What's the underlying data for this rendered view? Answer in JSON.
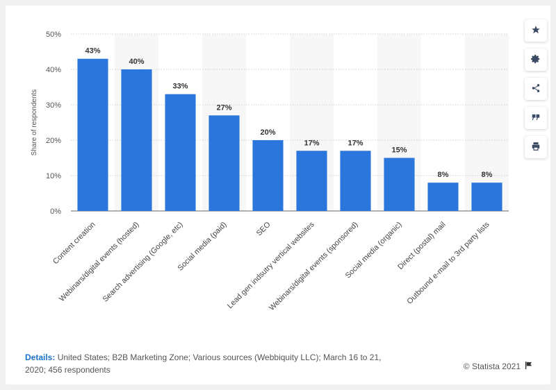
{
  "chart_data": {
    "type": "bar",
    "categories": [
      "Content creation",
      "Webinars/digital events (hosted)",
      "Search advertising (Google, etc)",
      "Social media (paid)",
      "SEO",
      "Lead gen indsutry vertical websites",
      "Webinars/digital events (sponsored)",
      "Social media (organic)",
      "Direct (postal) mail",
      "Outbound e-mail to 3rd party lists"
    ],
    "values": [
      43,
      40,
      33,
      27,
      20,
      17,
      17,
      15,
      8,
      8
    ],
    "value_labels": [
      "43%",
      "40%",
      "33%",
      "27%",
      "20%",
      "17%",
      "17%",
      "15%",
      "8%",
      "8%"
    ],
    "ylabel": "Share of respondents",
    "ylim": [
      0,
      50
    ],
    "yticks": [
      "0%",
      "10%",
      "20%",
      "30%",
      "40%",
      "50%"
    ],
    "bar_color": "#2a76dd",
    "grid": true
  },
  "details": {
    "label": "Details:",
    "text": "United States; B2B Marketing Zone; Various sources (Webbiquity LLC); March 16 to 21, 2020; 456 respondents"
  },
  "copyright": "© Statista 2021",
  "sidebar_icons": [
    "star-icon",
    "gear-icon",
    "share-icon",
    "quote-icon",
    "print-icon"
  ]
}
